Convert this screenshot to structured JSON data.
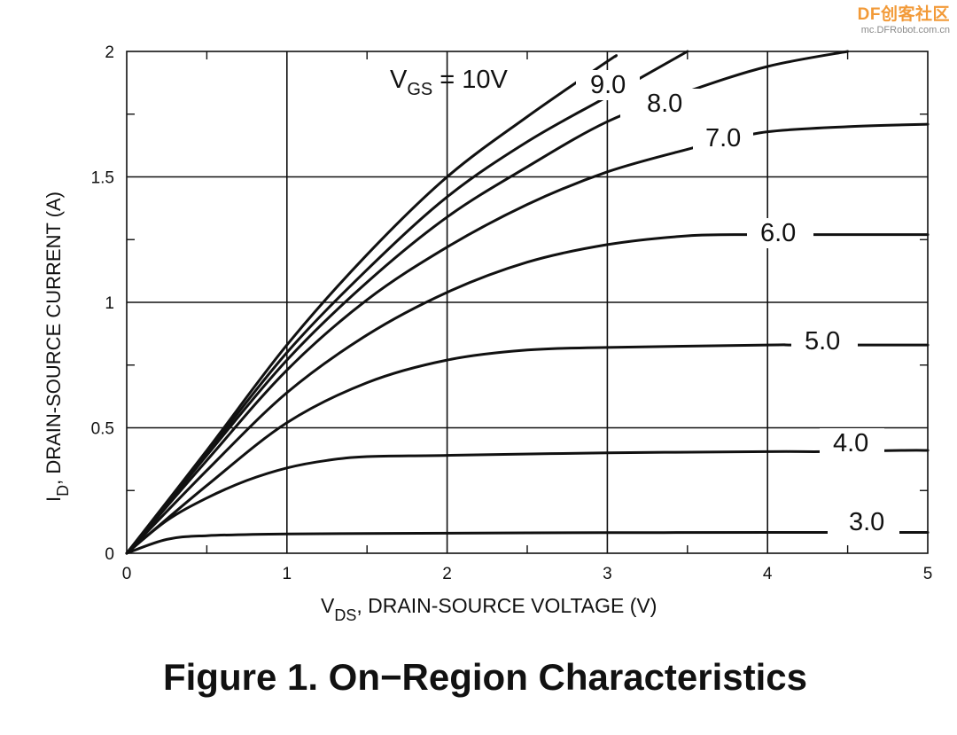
{
  "watermark": {
    "brand_df": "DF",
    "brand_cn": "创客社区",
    "site": "mc.DFRobot.com.cn",
    "color": "#f29a38"
  },
  "caption": "Figure 1. On−Region Characteristics",
  "chart_data": {
    "type": "line",
    "title": "",
    "xlabel_main": "V",
    "xlabel_sub": "DS",
    "xlabel_rest": ", DRAIN-SOURCE VOLTAGE (V)",
    "ylabel_main": "I",
    "ylabel_sub": "D",
    "ylabel_rest": ", DRAIN-SOURCE CURRENT (A)",
    "xlim": [
      0,
      5
    ],
    "ylim": [
      0,
      2
    ],
    "xticks": [
      0,
      1,
      2,
      3,
      4,
      5
    ],
    "yticks": [
      0,
      0.5,
      1,
      1.5,
      2
    ],
    "xtick_labels": [
      "0",
      "1",
      "2",
      "3",
      "4",
      "5"
    ],
    "ytick_labels": [
      "0",
      "0.5",
      "1",
      "1.5",
      "2"
    ],
    "grid": true,
    "line_color": "#111111",
    "series": [
      {
        "name": "3.0",
        "label": "3.0",
        "x": [
          0,
          0.25,
          0.5,
          1,
          2,
          3,
          4,
          4.45,
          4.85,
          5
        ],
        "y": [
          0,
          0.055,
          0.07,
          0.077,
          0.08,
          0.082,
          0.083,
          0.083,
          0.083,
          0.083
        ]
      },
      {
        "name": "4.0",
        "label": "4.0",
        "x": [
          0,
          0.25,
          0.5,
          0.75,
          1,
          1.25,
          1.5,
          2,
          3,
          4,
          4.35,
          4.85,
          5
        ],
        "y": [
          0,
          0.13,
          0.22,
          0.29,
          0.34,
          0.37,
          0.385,
          0.39,
          0.4,
          0.405,
          0.405,
          0.41,
          0.41
        ]
      },
      {
        "name": "5.0",
        "label": "5.0",
        "x": [
          0,
          0.5,
          1,
          1.5,
          2,
          2.5,
          3,
          4,
          4.15,
          4.6,
          5
        ],
        "y": [
          0,
          0.27,
          0.52,
          0.68,
          0.77,
          0.81,
          0.82,
          0.83,
          0.83,
          0.83,
          0.83
        ]
      },
      {
        "name": "6.0",
        "label": "6.0",
        "x": [
          0,
          0.5,
          1,
          1.5,
          2,
          2.5,
          3,
          3.5,
          3.9,
          4.25,
          5
        ],
        "y": [
          0,
          0.33,
          0.64,
          0.87,
          1.04,
          1.16,
          1.23,
          1.265,
          1.27,
          1.27,
          1.27
        ]
      },
      {
        "name": "7.0",
        "label": "7.0",
        "x": [
          0,
          0.5,
          1,
          1.5,
          2,
          2.5,
          3,
          3.5,
          3.7,
          4,
          4.5,
          5
        ],
        "y": [
          0,
          0.37,
          0.73,
          1.01,
          1.22,
          1.39,
          1.52,
          1.61,
          1.64,
          1.68,
          1.7,
          1.71
        ]
      },
      {
        "name": "8.0",
        "label": "8.0",
        "x": [
          0,
          0.5,
          1,
          1.5,
          2,
          2.5,
          3,
          3.5,
          4,
          4.5
        ],
        "y": [
          0,
          0.39,
          0.77,
          1.08,
          1.34,
          1.54,
          1.72,
          1.84,
          1.94,
          2.0
        ]
      },
      {
        "name": "9.0",
        "label": "9.0",
        "x": [
          0,
          0.5,
          1,
          1.5,
          2,
          2.5,
          3,
          3.5
        ],
        "y": [
          0,
          0.4,
          0.8,
          1.13,
          1.42,
          1.64,
          1.82,
          2.0
        ]
      },
      {
        "name": "10",
        "label_main": "V",
        "label_sub": "GS",
        "label_rest": " = 10V",
        "x": [
          0,
          0.5,
          1,
          1.5,
          2,
          2.5,
          3,
          3.05
        ],
        "y": [
          0,
          0.41,
          0.83,
          1.19,
          1.5,
          1.74,
          1.96,
          1.98
        ]
      }
    ]
  }
}
